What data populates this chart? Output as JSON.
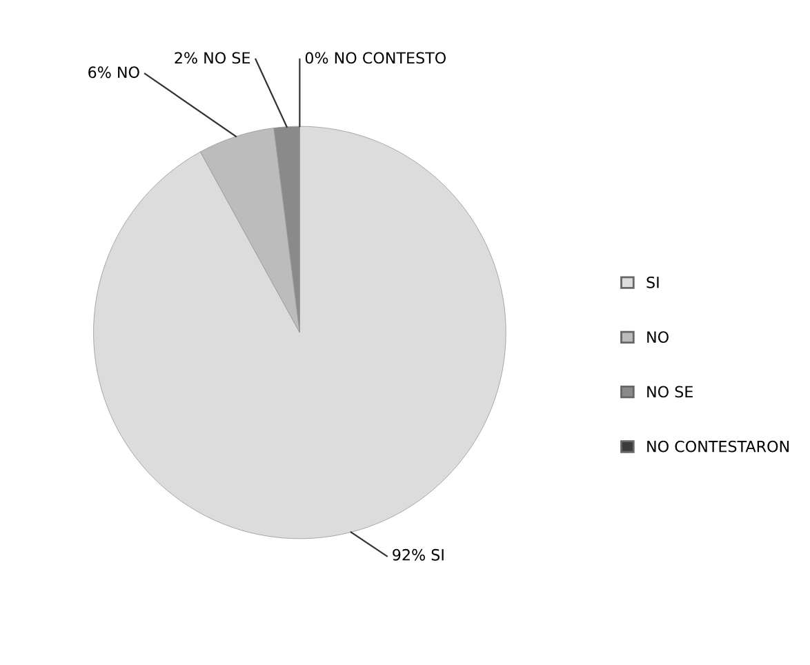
{
  "chart_data": {
    "type": "pie",
    "categories": [
      "SI",
      "NO",
      "NO SE",
      "NO CONTESTARON"
    ],
    "values": [
      92,
      6,
      2,
      0
    ],
    "colors": [
      "#dcdcdc",
      "#bcbcbc",
      "#8a8a8a",
      "#3c3c3c"
    ],
    "value_labels": [
      "92% SI",
      "6% NO",
      "2% NO SE",
      "0% NO CONTESTO"
    ],
    "legend": "right"
  }
}
